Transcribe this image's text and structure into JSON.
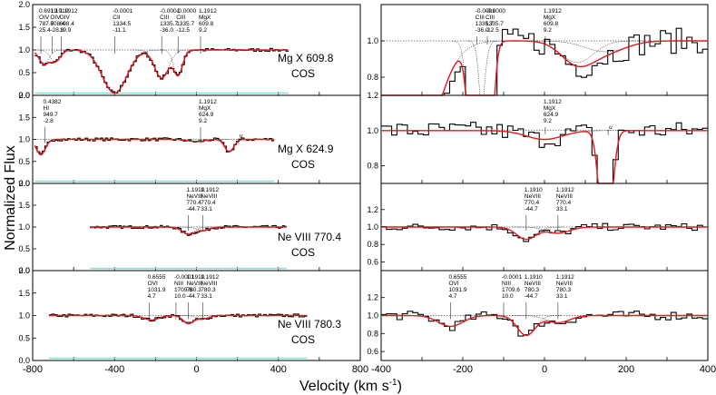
{
  "chart_data": {
    "type": "line",
    "ylabel": "Normalized Flux",
    "xlabel": "Velocity (km s",
    "xlabel_sup": "-1",
    "xlabel_close": ")",
    "colors": {
      "data": "#000000",
      "model": "#e8161d",
      "error": "#7fe5d2",
      "component": "#000000"
    },
    "left_xlim": [
      -800,
      800
    ],
    "right_xlim": [
      -400,
      400
    ],
    "left_xticks": [
      "-800",
      "-400",
      "0",
      "400",
      "800"
    ],
    "right_xticks": [
      "-400",
      "-200",
      "0",
      "200",
      "400"
    ],
    "left_panels": [
      {
        "ion": "Mg X 609.8",
        "instrument": "COS",
        "ylim": [
          0,
          2.0
        ],
        "yticks": [
          "2.0",
          "1.5",
          "1.0",
          "0.5",
          "0.0"
        ],
        "vrange": [
          -790,
          450
        ],
        "absorbers": [
          {
            "v": -400,
            "depth": 0.95,
            "width": 60
          },
          {
            "v": -170,
            "depth": 0.62,
            "width": 35
          },
          {
            "v": -90,
            "depth": 0.55,
            "width": 22
          },
          {
            "v": -745,
            "depth": 0.3,
            "width": 25
          },
          {
            "v": -690,
            "depth": 0.25,
            "width": 25
          }
        ],
        "annotations": [
          {
            "v": -760,
            "lines": [
              "0.6919",
              "OIV",
              "787.7",
              "25.4"
            ]
          },
          {
            "v": -660,
            "lines": [
              "1.1912",
              "OIV",
              "608.4",
              "19.9"
            ]
          },
          {
            "v": -705,
            "lines": [
              "1.1910",
              "OIV",
              "608.4",
              "-28.3"
            ]
          },
          {
            "v": -400,
            "lines": [
              "-0.0001",
              "CII",
              "1334.5",
              "-11.1"
            ]
          },
          {
            "v": -170,
            "lines": [
              "-0.0001",
              "CIII",
              "1335.7",
              "-36.0"
            ]
          },
          {
            "v": -90,
            "lines": [
              "-0.0000",
              "CIII",
              "1335.7",
              "-12.5"
            ]
          },
          {
            "v": 20,
            "lines": [
              "1.1912",
              "MgX",
              "609.8",
              "9.2"
            ]
          }
        ]
      },
      {
        "ion": "Mg X 624.9",
        "instrument": "COS",
        "ylim": [
          0,
          2.0
        ],
        "yticks": [
          "2.0",
          "1.5",
          "1.0",
          "0.5",
          "0.0"
        ],
        "vrange": [
          -790,
          380
        ],
        "absorbers": [
          {
            "v": -760,
            "depth": 0.35,
            "width": 22
          },
          {
            "v": 0,
            "depth": 0.05,
            "width": 40
          },
          {
            "v": 160,
            "depth": 0.28,
            "width": 22
          }
        ],
        "annotations": [
          {
            "v": -740,
            "lines": [
              "0.4382",
              "HI",
              "949.7",
              "-2.8"
            ]
          },
          {
            "v": 20,
            "lines": [
              "1.1912",
              "MgX",
              "624.9",
              "9.2"
            ]
          }
        ],
        "marker": "u"
      },
      {
        "ion": "Ne VIII 770.4",
        "instrument": "COS",
        "ylim": [
          0,
          2.0
        ],
        "yticks": [
          "2.0",
          "1.5",
          "1.0",
          "0.5",
          "0.0"
        ],
        "vrange": [
          -520,
          440
        ],
        "absorbers": [
          {
            "v": -40,
            "depth": 0.16,
            "width": 30
          },
          {
            "v": 30,
            "depth": 0.08,
            "width": 30
          }
        ],
        "annotations": [
          {
            "v": -40,
            "lines": [
              "1.1910",
              "NeVIII",
              "770.4",
              "-44.7"
            ]
          },
          {
            "v": 30,
            "lines": [
              "1.1912",
              "NeVIII",
              "770.4",
              "33.1"
            ]
          }
        ]
      },
      {
        "ion": "Ne VIII 780.3",
        "instrument": "COS",
        "ylim": [
          0,
          2.0
        ],
        "yticks": [
          "2.0",
          "1.5",
          "1.0",
          "0.5",
          "0.0"
        ],
        "vrange": [
          -720,
          540
        ],
        "absorbers": [
          {
            "v": -220,
            "depth": 0.1,
            "width": 35
          },
          {
            "v": -40,
            "depth": 0.18,
            "width": 25
          },
          {
            "v": 30,
            "depth": 0.08,
            "width": 28
          }
        ],
        "annotations": [
          {
            "v": -230,
            "lines": [
              "0.6555",
              "OVI",
              "1031.9",
              "4.7"
            ]
          },
          {
            "v": -100,
            "lines": [
              "-0.0001",
              "NIII",
              "1709.6",
              "10.0"
            ]
          },
          {
            "v": -40,
            "lines": [
              "1.1910",
              "NeVIII",
              "780.3",
              "-44.7"
            ]
          },
          {
            "v": 30,
            "lines": [
              "1.1912",
              "NeVIII",
              "780.3",
              "33.1"
            ]
          }
        ]
      }
    ],
    "right_panels": [
      {
        "ylim": [
          0.7,
          1.2
        ],
        "yticks": [
          "1.0",
          "0.8"
        ],
        "noise": 0.07,
        "absorbers": [
          {
            "v": -350,
            "depth": 0.98,
            "width": 65
          },
          {
            "v": -170,
            "depth": 0.98,
            "width": 14
          },
          {
            "v": -140,
            "depth": 0.96,
            "width": 12
          },
          {
            "v": 80,
            "depth": 0.12,
            "width": 40
          },
          {
            "v": 150,
            "depth": 0.06,
            "width": 50
          }
        ],
        "annotations": [
          {
            "v": -165,
            "lines": [
              "-0.0001",
              "CIII",
              "1335.7",
              "-36.0"
            ]
          },
          {
            "v": -140,
            "lines": [
              "-0.0000",
              "CIII",
              "1335.7",
              "-12.5"
            ]
          },
          {
            "v": 2,
            "lines": [
              "1.1912",
              "MgX",
              "609.8",
              "9.2"
            ]
          }
        ]
      },
      {
        "ylim": [
          0.7,
          1.2
        ],
        "yticks": [
          "1.2",
          "1.0",
          "0.8"
        ],
        "noise": 0.05,
        "absorbers": [
          {
            "v": 0,
            "depth": 0.05,
            "width": 45
          },
          {
            "v": 150,
            "depth": 0.75,
            "width": 14
          }
        ],
        "annotations": [
          {
            "v": 2,
            "lines": [
              "1.1912",
              "MgX",
              "624.9",
              "9.2"
            ]
          }
        ],
        "marker": "u"
      },
      {
        "ylim": [
          0.5,
          1.5
        ],
        "yticks": [
          "1.2",
          "1.0",
          "0.8",
          "0.6"
        ],
        "noise": 0.04,
        "absorbers": [
          {
            "v": -44.7,
            "depth": 0.14,
            "width": 24
          },
          {
            "v": 33.1,
            "depth": 0.07,
            "width": 28
          }
        ],
        "annotations": [
          {
            "v": -44.7,
            "lines": [
              "1.1910",
              "NeVIII",
              "770.4",
              "-44.7"
            ]
          },
          {
            "v": 33.1,
            "lines": [
              "1.1912",
              "NeVIII",
              "770.4",
              "33.1"
            ]
          }
        ]
      },
      {
        "ylim": [
          0.5,
          1.5
        ],
        "yticks": [
          "1.2",
          "1.0",
          "0.8",
          "0.6"
        ],
        "noise": 0.05,
        "absorbers": [
          {
            "v": -230,
            "depth": 0.12,
            "width": 30
          },
          {
            "v": -44.7,
            "depth": 0.22,
            "width": 22
          },
          {
            "v": 33.1,
            "depth": 0.08,
            "width": 28
          }
        ],
        "annotations": [
          {
            "v": -230,
            "lines": [
              "0.6555",
              "OVI",
              "1031.9",
              "4.7"
            ]
          },
          {
            "v": -100,
            "lines": [
              "-0.0001",
              "NIII",
              "1709.6",
              "10.0"
            ]
          },
          {
            "v": -44.7,
            "lines": [
              "1.1910",
              "NeVIII",
              "780.3",
              "-44.7"
            ]
          },
          {
            "v": 33.1,
            "lines": [
              "1.1912",
              "NeVIII",
              "780.3",
              "33.1"
            ]
          }
        ]
      }
    ]
  }
}
